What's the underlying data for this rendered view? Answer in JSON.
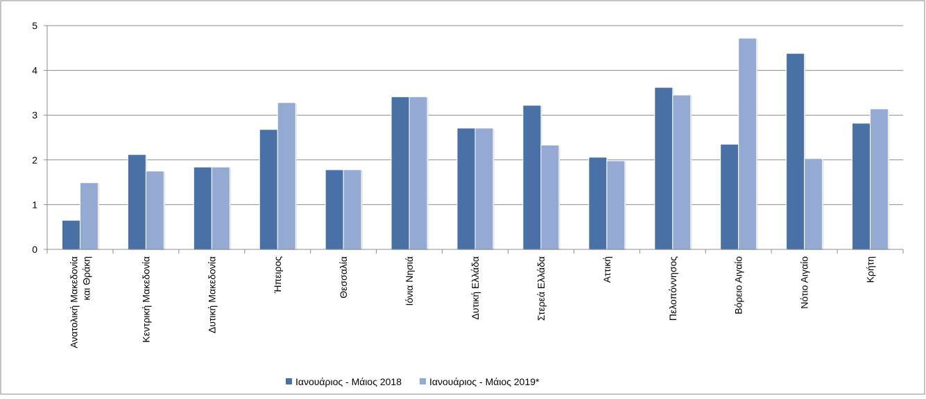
{
  "chart_data": {
    "type": "bar",
    "categories": [
      "Ανατολική Μακεδονία\nκαι Θράκη",
      "Κεντρική Μακεδονία",
      "Δυτική Μακεδονία",
      "Ήπειρος",
      "Θεσσαλία",
      "Ιόνια Νησιά",
      "Δυτική Ελλάδα",
      "Στερεά Ελλάδα",
      "Αττική",
      "Πελοπόννησος",
      "Βόρειο Αιγαίο",
      "Νότιο Αιγαίο",
      "Κρήτη"
    ],
    "series": [
      {
        "name": "Ιανουάριος - Μάιος 2018",
        "color": "#4a71a6",
        "values": [
          0.65,
          2.12,
          1.84,
          2.68,
          1.78,
          3.41,
          2.71,
          3.22,
          2.06,
          3.62,
          2.35,
          4.38,
          2.82
        ]
      },
      {
        "name": "Ιανουάριος - Μάιος 2019*",
        "color": "#95aad3",
        "values": [
          1.49,
          1.75,
          1.84,
          3.28,
          1.78,
          3.41,
          2.71,
          2.33,
          1.98,
          3.45,
          4.72,
          2.03,
          3.14
        ]
      }
    ],
    "ylim": [
      0,
      5
    ],
    "yticks": [
      0,
      1,
      2,
      3,
      4,
      5
    ],
    "grid": true,
    "legend": "bottom"
  }
}
